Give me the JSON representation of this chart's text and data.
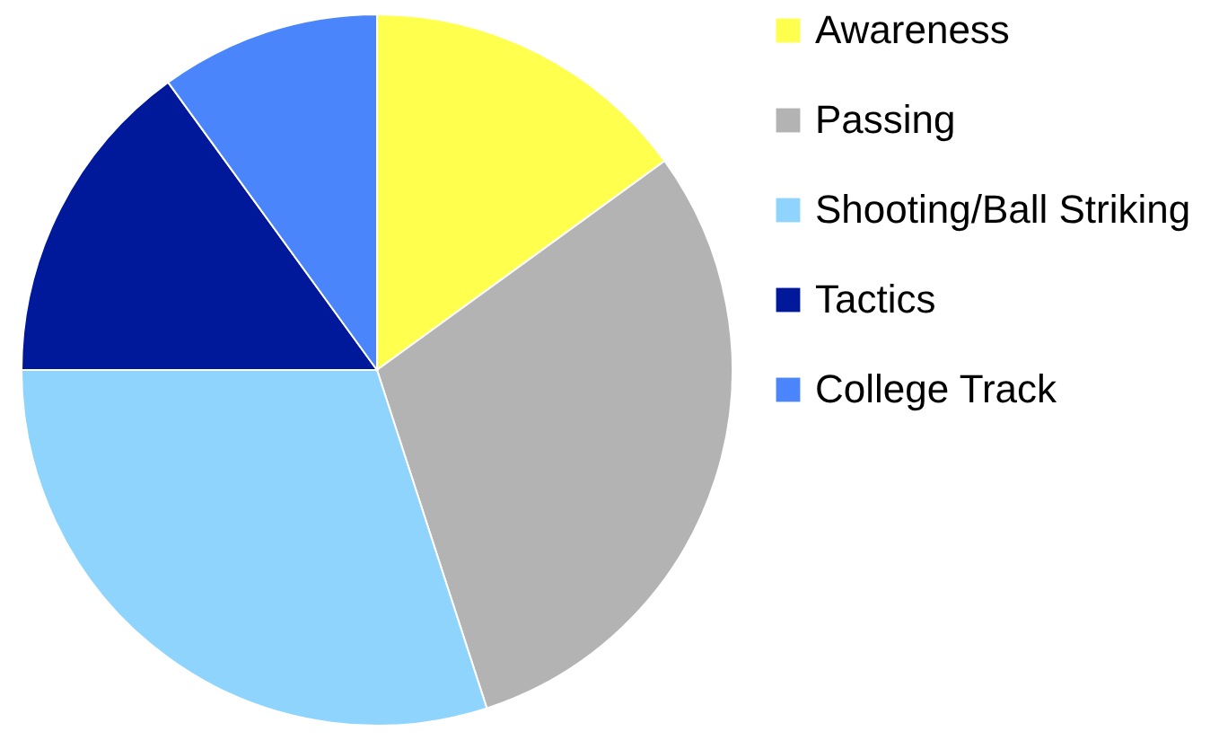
{
  "chart_data": {
    "type": "pie",
    "categories": [
      "Awareness",
      "Passing",
      "Shooting/Ball Striking",
      "Tactics",
      "College Track"
    ],
    "values": [
      15,
      30,
      30,
      15,
      10
    ],
    "colors": [
      "#ffff4d",
      "#b3b3b3",
      "#8fd4fd",
      "#00189a",
      "#4a85fb"
    ],
    "legend": "right"
  }
}
